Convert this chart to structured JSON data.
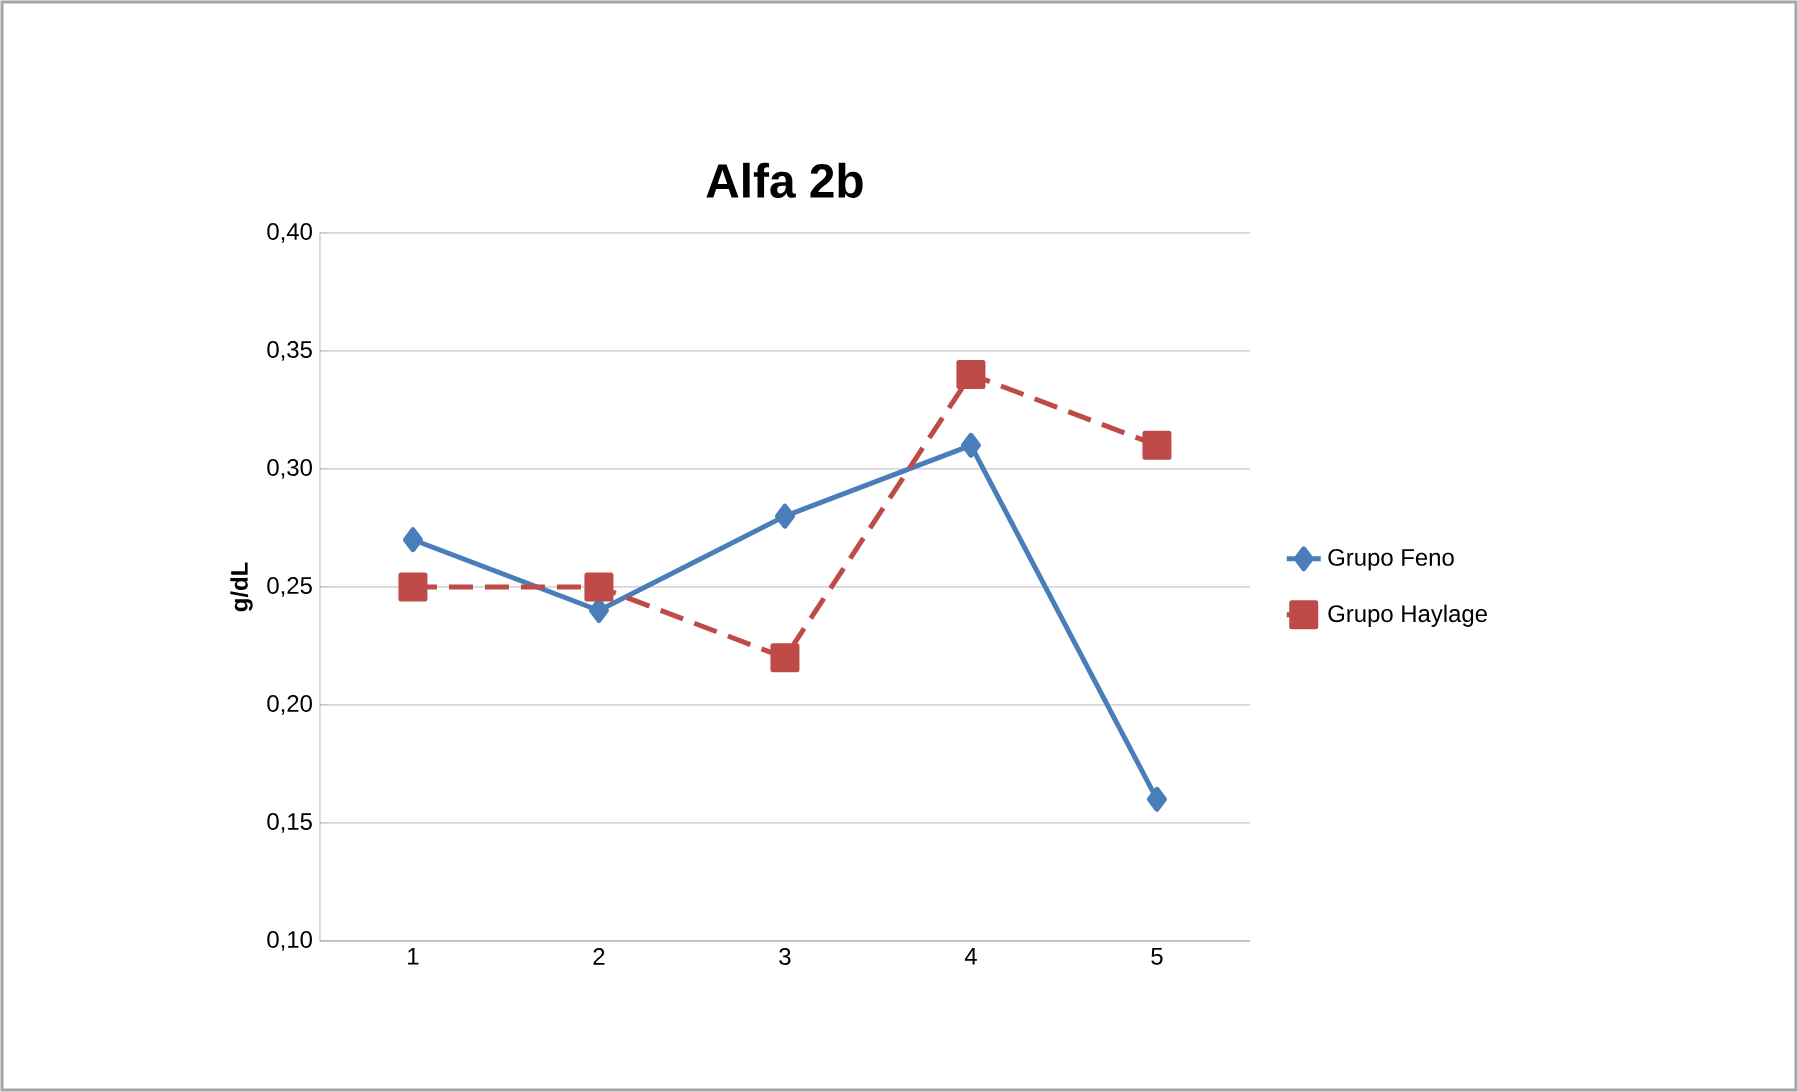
{
  "chart_data": {
    "type": "line",
    "title": "Alfa 2b",
    "ylabel": "g/dL",
    "categories": [
      "1",
      "2",
      "3",
      "4",
      "5"
    ],
    "series": [
      {
        "name": "Grupo Feno",
        "color": "#4a7ebb",
        "marker": "diamond",
        "line_style": "solid",
        "values": [
          0.27,
          0.24,
          0.28,
          0.31,
          0.16
        ]
      },
      {
        "name": "Grupo Haylage",
        "color": "#be4b48",
        "marker": "square",
        "line_style": "dashed",
        "values": [
          0.25,
          0.25,
          0.22,
          0.34,
          0.31
        ]
      }
    ],
    "ylim": [
      0.1,
      0.4
    ],
    "yticks": [
      {
        "value": 0.1,
        "label": "0,10"
      },
      {
        "value": 0.15,
        "label": "0,15"
      },
      {
        "value": 0.2,
        "label": "0,20"
      },
      {
        "value": 0.25,
        "label": "0,25"
      },
      {
        "value": 0.3,
        "label": "0,30"
      },
      {
        "value": 0.35,
        "label": "0,35"
      },
      {
        "value": 0.4,
        "label": "0,40"
      }
    ],
    "grid": "y",
    "legend": "right"
  }
}
